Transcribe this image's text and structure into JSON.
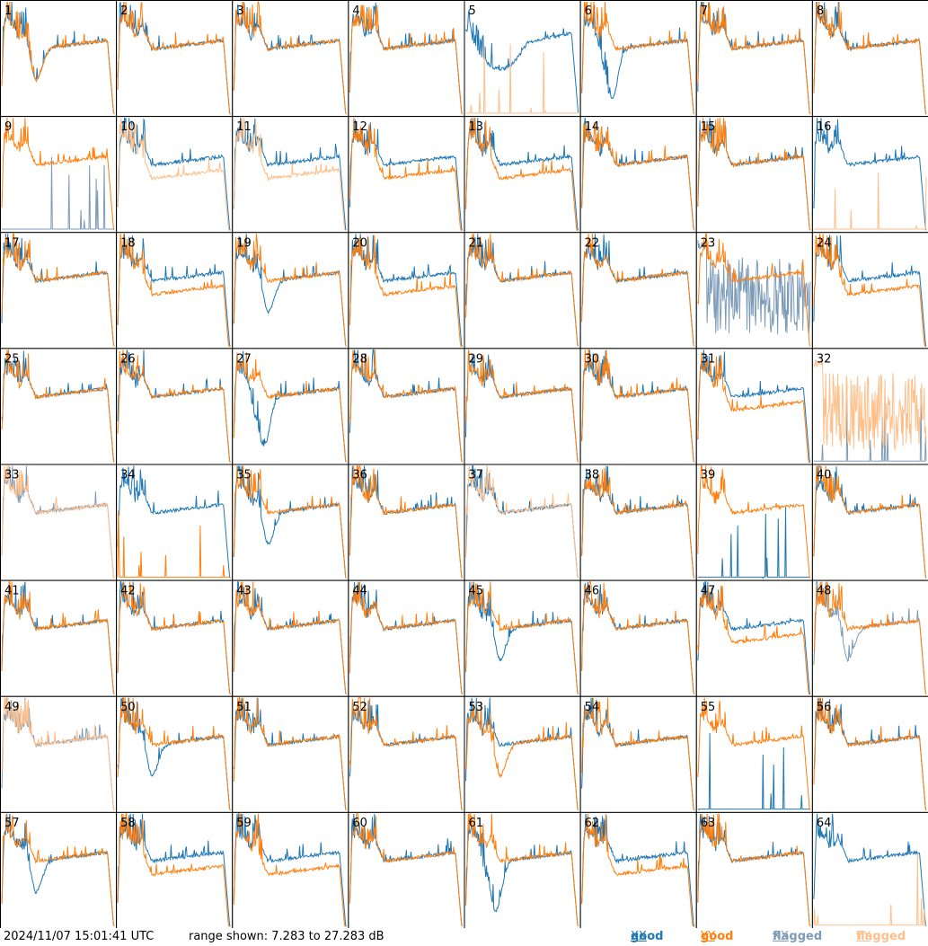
{
  "footer": {
    "timestamp": "2024/11/07 15:01:41 UTC",
    "range_text": "range shown: 7.283 to 27.283 dB"
  },
  "legend": {
    "good_label": "good",
    "flagged_label": "flagged",
    "xx": "XX",
    "yy": "YY"
  },
  "colors": {
    "good_xx": "#1f77b4",
    "good_yy": "#ff7f0e",
    "flagged_xx": "#7d9bb7",
    "flagged_yy": "#ffbf8a"
  },
  "chart_data": {
    "type": "line",
    "grid": {
      "rows": 8,
      "cols": 8
    },
    "ylim": [
      7.283,
      27.283
    ],
    "panels": [
      {
        "id": "1",
        "xx": "good",
        "yy": "good",
        "xx_shape": "dip",
        "yy_shape": "dip"
      },
      {
        "id": "2",
        "xx": "good",
        "yy": "good",
        "xx_shape": "flat",
        "yy_shape": "flat"
      },
      {
        "id": "3",
        "xx": "good",
        "yy": "good",
        "xx_shape": "flat",
        "yy_shape": "flat"
      },
      {
        "id": "4",
        "xx": "good",
        "yy": "good",
        "xx_shape": "flat",
        "yy_shape": "flat"
      },
      {
        "id": "5",
        "xx": "good",
        "yy": "flagged",
        "xx_shape": "bowl",
        "yy_shape": "dead"
      },
      {
        "id": "6",
        "xx": "good",
        "yy": "good",
        "xx_shape": "deepdip",
        "yy_shape": "flat"
      },
      {
        "id": "7",
        "xx": "good",
        "yy": "good",
        "xx_shape": "flat",
        "yy_shape": "flat"
      },
      {
        "id": "8",
        "xx": "good",
        "yy": "good",
        "xx_shape": "flat",
        "yy_shape": "flat"
      },
      {
        "id": "9",
        "xx": "flagged",
        "yy": "good",
        "xx_shape": "dead",
        "yy_shape": "flat"
      },
      {
        "id": "10",
        "xx": "good",
        "yy": "flagged",
        "xx_shape": "flat",
        "yy_shape": "low"
      },
      {
        "id": "11",
        "xx": "good",
        "yy": "flagged",
        "xx_shape": "flat",
        "yy_shape": "low"
      },
      {
        "id": "12",
        "xx": "good",
        "yy": "good",
        "xx_shape": "flat",
        "yy_shape": "low"
      },
      {
        "id": "13",
        "xx": "good",
        "yy": "good",
        "xx_shape": "flat",
        "yy_shape": "low"
      },
      {
        "id": "14",
        "xx": "good",
        "yy": "good",
        "xx_shape": "flat",
        "yy_shape": "flat"
      },
      {
        "id": "15",
        "xx": "good",
        "yy": "good",
        "xx_shape": "flat",
        "yy_shape": "flat"
      },
      {
        "id": "16",
        "xx": "good",
        "yy": "flagged",
        "xx_shape": "flat",
        "yy_shape": "dead"
      },
      {
        "id": "17",
        "xx": "good",
        "yy": "good",
        "xx_shape": "flat",
        "yy_shape": "flat"
      },
      {
        "id": "18",
        "xx": "good",
        "yy": "good",
        "xx_shape": "flat",
        "yy_shape": "low"
      },
      {
        "id": "19",
        "xx": "good",
        "yy": "good",
        "xx_shape": "dip",
        "yy_shape": "flat"
      },
      {
        "id": "20",
        "xx": "good",
        "yy": "good",
        "xx_shape": "flat",
        "yy_shape": "low"
      },
      {
        "id": "21",
        "xx": "good",
        "yy": "good",
        "xx_shape": "flat",
        "yy_shape": "flat"
      },
      {
        "id": "22",
        "xx": "good",
        "yy": "good",
        "xx_shape": "flat",
        "yy_shape": "flat"
      },
      {
        "id": "23",
        "xx": "flagged",
        "yy": "good",
        "xx_shape": "noise",
        "yy_shape": "flat"
      },
      {
        "id": "24",
        "xx": "good",
        "yy": "good",
        "xx_shape": "flat",
        "yy_shape": "low"
      },
      {
        "id": "25",
        "xx": "good",
        "yy": "good",
        "xx_shape": "flat",
        "yy_shape": "flat"
      },
      {
        "id": "26",
        "xx": "good",
        "yy": "good",
        "xx_shape": "flat",
        "yy_shape": "flat"
      },
      {
        "id": "27",
        "xx": "good",
        "yy": "good",
        "xx_shape": "deepdip",
        "yy_shape": "flat"
      },
      {
        "id": "28",
        "xx": "good",
        "yy": "good",
        "xx_shape": "flat",
        "yy_shape": "flat"
      },
      {
        "id": "29",
        "xx": "good",
        "yy": "good",
        "xx_shape": "flat",
        "yy_shape": "flat"
      },
      {
        "id": "30",
        "xx": "good",
        "yy": "good",
        "xx_shape": "flat",
        "yy_shape": "flat"
      },
      {
        "id": "31",
        "xx": "good",
        "yy": "good",
        "xx_shape": "flat",
        "yy_shape": "low"
      },
      {
        "id": "32",
        "xx": "flagged",
        "yy": "flagged",
        "xx_shape": "dead",
        "yy_shape": "noise"
      },
      {
        "id": "33",
        "xx": "flagged",
        "yy": "flagged",
        "xx_shape": "flat",
        "yy_shape": "flat"
      },
      {
        "id": "34",
        "xx": "good",
        "yy": "good",
        "xx_shape": "flat",
        "yy_shape": "dead"
      },
      {
        "id": "35",
        "xx": "good",
        "yy": "good",
        "xx_shape": "dip",
        "yy_shape": "flat"
      },
      {
        "id": "36",
        "xx": "good",
        "yy": "good",
        "xx_shape": "flat",
        "yy_shape": "flat"
      },
      {
        "id": "37",
        "xx": "good",
        "yy": "flagged",
        "xx_shape": "flat",
        "yy_shape": "flat"
      },
      {
        "id": "38",
        "xx": "good",
        "yy": "good",
        "xx_shape": "flat",
        "yy_shape": "flat"
      },
      {
        "id": "39",
        "xx": "good",
        "yy": "good",
        "xx_shape": "dead",
        "yy_shape": "flat"
      },
      {
        "id": "40",
        "xx": "good",
        "yy": "good",
        "xx_shape": "flat",
        "yy_shape": "flat"
      },
      {
        "id": "41",
        "xx": "good",
        "yy": "good",
        "xx_shape": "flat",
        "yy_shape": "flat"
      },
      {
        "id": "42",
        "xx": "good",
        "yy": "good",
        "xx_shape": "flat",
        "yy_shape": "flat"
      },
      {
        "id": "43",
        "xx": "good",
        "yy": "good",
        "xx_shape": "flat",
        "yy_shape": "flat"
      },
      {
        "id": "44",
        "xx": "good",
        "yy": "good",
        "xx_shape": "flat",
        "yy_shape": "flat"
      },
      {
        "id": "45",
        "xx": "good",
        "yy": "good",
        "xx_shape": "dip",
        "yy_shape": "flat"
      },
      {
        "id": "46",
        "xx": "good",
        "yy": "good",
        "xx_shape": "flat",
        "yy_shape": "flat"
      },
      {
        "id": "47",
        "xx": "good",
        "yy": "good",
        "xx_shape": "flat",
        "yy_shape": "low"
      },
      {
        "id": "48",
        "xx": "flagged",
        "yy": "good",
        "xx_shape": "dip",
        "yy_shape": "flat"
      },
      {
        "id": "49",
        "xx": "flagged",
        "yy": "flagged",
        "xx_shape": "flat",
        "yy_shape": "flat"
      },
      {
        "id": "50",
        "xx": "good",
        "yy": "good",
        "xx_shape": "dip",
        "yy_shape": "flat"
      },
      {
        "id": "51",
        "xx": "good",
        "yy": "good",
        "xx_shape": "flat",
        "yy_shape": "flat"
      },
      {
        "id": "52",
        "xx": "good",
        "yy": "good",
        "xx_shape": "flat",
        "yy_shape": "flat"
      },
      {
        "id": "53",
        "xx": "good",
        "yy": "good",
        "xx_shape": "flat",
        "yy_shape": "dip"
      },
      {
        "id": "54",
        "xx": "good",
        "yy": "good",
        "xx_shape": "flat",
        "yy_shape": "flat"
      },
      {
        "id": "55",
        "xx": "good",
        "yy": "good",
        "xx_shape": "dead",
        "yy_shape": "flat"
      },
      {
        "id": "56",
        "xx": "good",
        "yy": "good",
        "xx_shape": "flat",
        "yy_shape": "flat"
      },
      {
        "id": "57",
        "xx": "good",
        "yy": "good",
        "xx_shape": "dip",
        "yy_shape": "flat"
      },
      {
        "id": "58",
        "xx": "good",
        "yy": "good",
        "xx_shape": "flat",
        "yy_shape": "low"
      },
      {
        "id": "59",
        "xx": "good",
        "yy": "good",
        "xx_shape": "flat",
        "yy_shape": "low"
      },
      {
        "id": "60",
        "xx": "good",
        "yy": "good",
        "xx_shape": "flat",
        "yy_shape": "flat"
      },
      {
        "id": "61",
        "xx": "good",
        "yy": "good",
        "xx_shape": "deepdip",
        "yy_shape": "flat"
      },
      {
        "id": "62",
        "xx": "good",
        "yy": "good",
        "xx_shape": "flat",
        "yy_shape": "low"
      },
      {
        "id": "63",
        "xx": "good",
        "yy": "good",
        "xx_shape": "flat",
        "yy_shape": "flat"
      },
      {
        "id": "64",
        "xx": "good",
        "yy": "flagged",
        "xx_shape": "flat",
        "yy_shape": "dead"
      }
    ]
  }
}
